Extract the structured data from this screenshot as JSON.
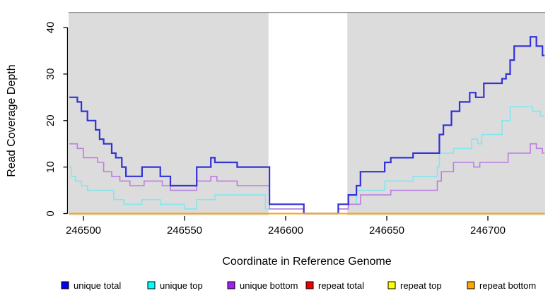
{
  "chart_data": {
    "type": "line",
    "subtype": "step-post",
    "title": "",
    "xlabel": "Coordinate in Reference Genome",
    "ylabel": "Read Coverage Depth",
    "xlim": [
      246492.6,
      246729
    ],
    "ylim": [
      0,
      42
    ],
    "x_ticks": [
      246500,
      246550,
      246600,
      246650,
      246700
    ],
    "y_ticks": [
      0,
      10,
      20,
      30,
      40
    ],
    "x_end": 246728,
    "grid": false,
    "legend_position": "bottom",
    "colors": {
      "panel_background": "#dcdcdc",
      "panel_border": "#909090",
      "uncovered_region": "#ffffff",
      "axis": "#000000"
    },
    "uncovered_region": [
      246591.5,
      246630.5
    ],
    "series": [
      {
        "name": "unique total",
        "line_color": "#3232d8",
        "swatch_color": "#0000ee",
        "width": 2.2,
        "points": [
          [
            246493,
            25
          ],
          [
            246497,
            24
          ],
          [
            246499,
            22
          ],
          [
            246502,
            20
          ],
          [
            246506,
            18
          ],
          [
            246508,
            16
          ],
          [
            246510,
            15
          ],
          [
            246514,
            13
          ],
          [
            246516,
            12
          ],
          [
            246519,
            10
          ],
          [
            246521,
            8
          ],
          [
            246529,
            10
          ],
          [
            246538,
            8
          ],
          [
            246543,
            6
          ],
          [
            246556,
            10
          ],
          [
            246563,
            12
          ],
          [
            246565,
            11
          ],
          [
            246576,
            10
          ],
          [
            246592,
            2
          ],
          [
            246609,
            0
          ],
          [
            246626,
            2
          ],
          [
            246631,
            4
          ],
          [
            246635,
            6
          ],
          [
            246637,
            9
          ],
          [
            246649,
            11
          ],
          [
            246652,
            12
          ],
          [
            246663,
            13
          ],
          [
            246676,
            17
          ],
          [
            246678,
            19
          ],
          [
            246682,
            22
          ],
          [
            246686,
            24
          ],
          [
            246691,
            26
          ],
          [
            246694,
            25
          ],
          [
            246698,
            28
          ],
          [
            246707,
            29
          ],
          [
            246709,
            30
          ],
          [
            246711,
            33
          ],
          [
            246713,
            36
          ],
          [
            246721,
            38
          ],
          [
            246724,
            36
          ],
          [
            246727,
            34
          ]
        ]
      },
      {
        "name": "unique top",
        "line_color": "#84e6ee",
        "swatch_color": "#00ffff",
        "width": 1.6,
        "points": [
          [
            246493,
            10
          ],
          [
            246494,
            8
          ],
          [
            246496,
            7
          ],
          [
            246499,
            6
          ],
          [
            246502,
            5
          ],
          [
            246515,
            3
          ],
          [
            246520,
            2
          ],
          [
            246529,
            3
          ],
          [
            246538,
            2
          ],
          [
            246550,
            1
          ],
          [
            246556,
            3
          ],
          [
            246565,
            4
          ],
          [
            246590,
            1
          ],
          [
            246609,
            0
          ],
          [
            246626,
            1
          ],
          [
            246631,
            2
          ],
          [
            246635,
            5
          ],
          [
            246649,
            7
          ],
          [
            246663,
            8
          ],
          [
            246675,
            10
          ],
          [
            246676,
            13
          ],
          [
            246683,
            14
          ],
          [
            246692,
            16
          ],
          [
            246695,
            15
          ],
          [
            246697,
            17
          ],
          [
            246707,
            20
          ],
          [
            246711,
            23
          ],
          [
            246722,
            22
          ],
          [
            246726,
            21
          ]
        ]
      },
      {
        "name": "unique bottom",
        "line_color": "#bb7ee2",
        "swatch_color": "#a020f0",
        "width": 1.6,
        "points": [
          [
            246493,
            15
          ],
          [
            246497,
            14
          ],
          [
            246500,
            12
          ],
          [
            246507,
            11
          ],
          [
            246510,
            9
          ],
          [
            246514,
            8
          ],
          [
            246518,
            7
          ],
          [
            246523,
            6
          ],
          [
            246530,
            7
          ],
          [
            246539,
            6
          ],
          [
            246543,
            5
          ],
          [
            246556,
            7
          ],
          [
            246563,
            8
          ],
          [
            246566,
            7
          ],
          [
            246576,
            6
          ],
          [
            246592,
            1
          ],
          [
            246609,
            0
          ],
          [
            246626,
            1
          ],
          [
            246631,
            2
          ],
          [
            246637,
            4
          ],
          [
            246652,
            5
          ],
          [
            246675,
            7
          ],
          [
            246677,
            9
          ],
          [
            246683,
            11
          ],
          [
            246693,
            10
          ],
          [
            246696,
            11
          ],
          [
            246710,
            13
          ],
          [
            246721,
            15
          ],
          [
            246724,
            14
          ],
          [
            246727,
            13
          ]
        ]
      },
      {
        "name": "repeat total",
        "line_color": "#dd0000",
        "swatch_color": "#ee0000",
        "width": 1.5,
        "points": [
          [
            246493,
            0
          ]
        ]
      },
      {
        "name": "repeat top",
        "line_color": "#ffff00",
        "swatch_color": "#ffff00",
        "width": 1.5,
        "points": [
          [
            246493,
            0
          ]
        ]
      },
      {
        "name": "repeat bottom",
        "line_color": "#ffa500",
        "swatch_color": "#ffa500",
        "width": 2,
        "points": [
          [
            246493,
            0
          ]
        ]
      }
    ]
  }
}
